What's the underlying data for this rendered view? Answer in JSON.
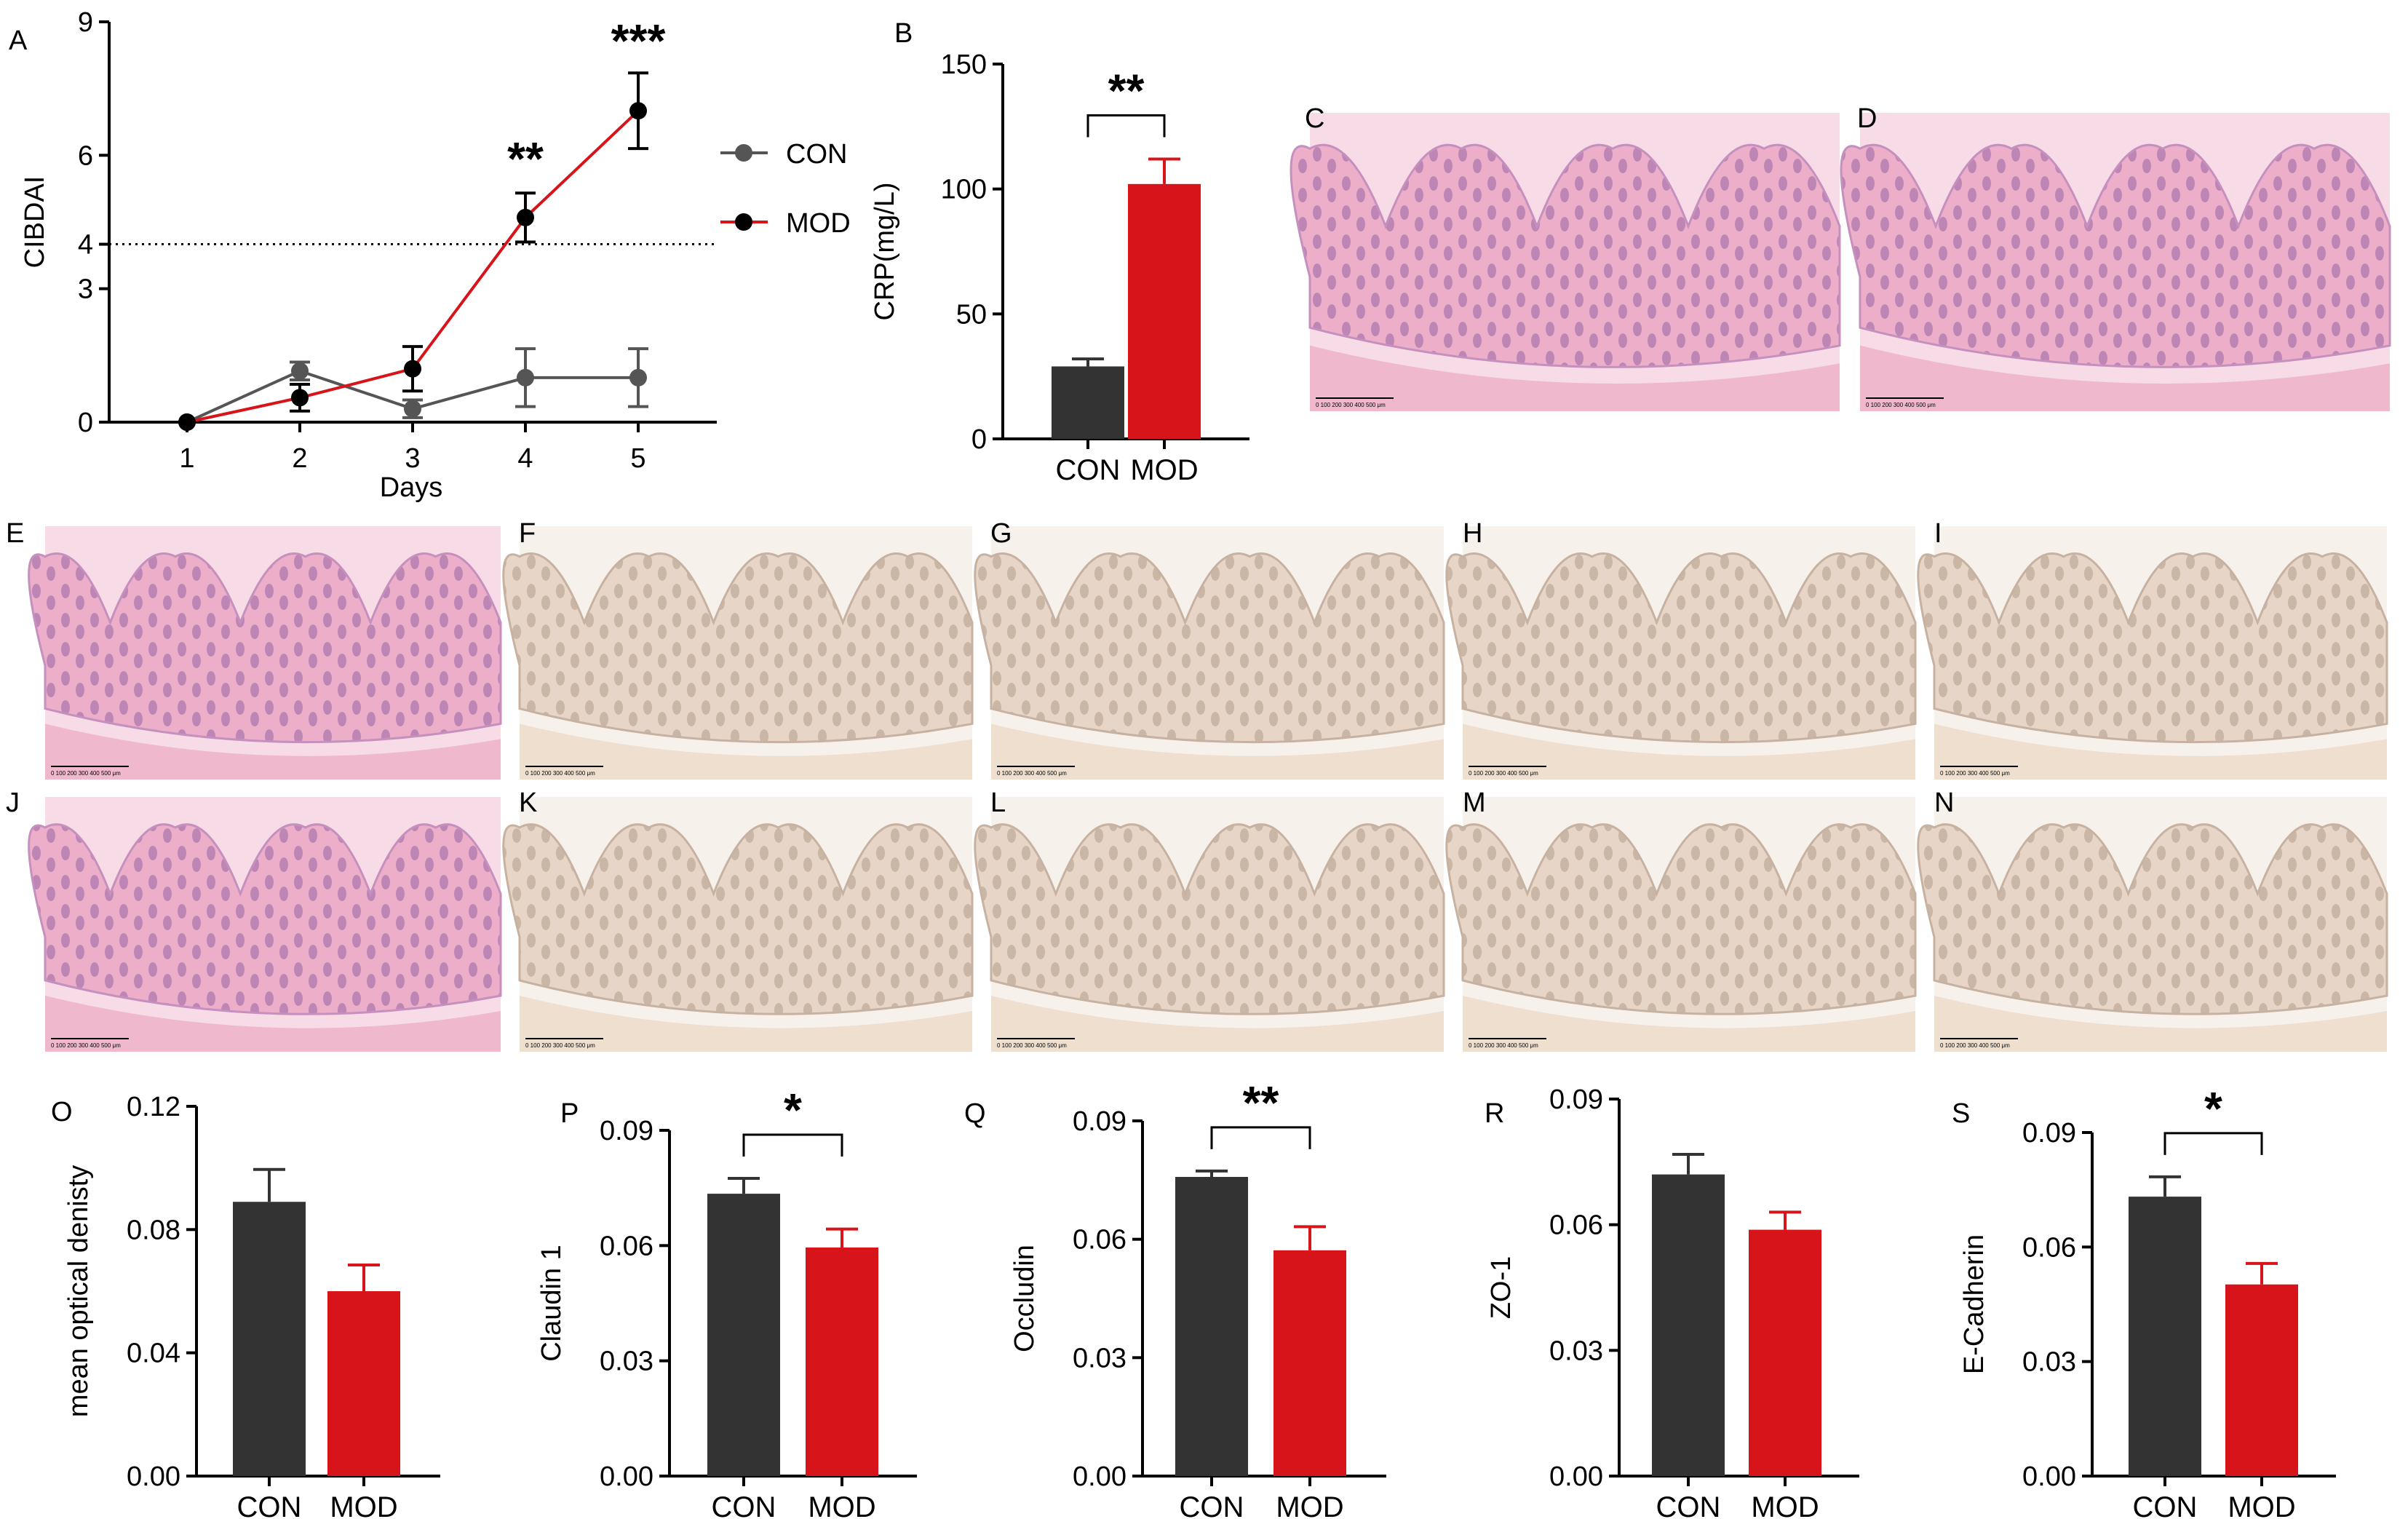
{
  "colors": {
    "con": "#333333",
    "mod": "#d7141a",
    "line_con": "#555555",
    "line_mod": "#d7141a"
  },
  "chart_data": [
    {
      "id": "A",
      "panel": "A",
      "type": "line",
      "xlabel": "Days",
      "ylabel": "CIBDAI",
      "x": [
        1,
        2,
        3,
        4,
        5
      ],
      "yticks": [
        0,
        3,
        4,
        6,
        9
      ],
      "ylim": [
        0,
        9
      ],
      "reference_line": 4,
      "legend_placement": "right",
      "series": [
        {
          "name": "CON",
          "values": [
            0,
            1.15,
            0.3,
            1.0,
            1.0
          ],
          "errors": [
            0,
            0.2,
            0.2,
            0.65,
            0.65
          ]
        },
        {
          "name": "MOD",
          "values": [
            0,
            0.55,
            1.2,
            4.6,
            7.0
          ],
          "errors": [
            0,
            0.3,
            0.5,
            0.55,
            0.85
          ]
        }
      ],
      "annotations": [
        {
          "x": 4,
          "text": "**"
        },
        {
          "x": 5,
          "text": "***"
        }
      ]
    },
    {
      "id": "B",
      "panel": "B",
      "type": "bar",
      "ylabel": "CRP(mg/L)",
      "yticks": [
        0,
        50,
        100,
        150
      ],
      "ylim": [
        0,
        150
      ],
      "categories": [
        "CON",
        "MOD"
      ],
      "values": [
        29,
        102
      ],
      "errors": [
        3,
        10
      ],
      "significance": "**"
    },
    {
      "id": "O",
      "panel": "O",
      "type": "bar",
      "ylabel": "mean optical denisty",
      "yticks": [
        "0.00",
        "0.04",
        "0.08",
        "0.12"
      ],
      "ylim": [
        0,
        0.12
      ],
      "categories": [
        "CON",
        "MOD"
      ],
      "values": [
        0.089,
        0.06
      ],
      "errors": [
        0.0105,
        0.0085
      ],
      "significance": ""
    },
    {
      "id": "P",
      "panel": "P",
      "type": "bar",
      "ylabel": "Claudin 1",
      "yticks": [
        "0.00",
        "0.03",
        "0.06",
        "0.09"
      ],
      "ylim": [
        0,
        0.09
      ],
      "categories": [
        "CON",
        "MOD"
      ],
      "values": [
        0.0735,
        0.0595
      ],
      "errors": [
        0.004,
        0.0048
      ],
      "significance": "*"
    },
    {
      "id": "Q",
      "panel": "Q",
      "type": "bar",
      "ylabel": "Occludin",
      "yticks": [
        "0.00",
        "0.03",
        "0.06",
        "0.09"
      ],
      "ylim": [
        0,
        0.09
      ],
      "categories": [
        "CON",
        "MOD"
      ],
      "values": [
        0.0758,
        0.0572
      ],
      "errors": [
        0.0015,
        0.006
      ],
      "significance": "**"
    },
    {
      "id": "R",
      "panel": "R",
      "type": "bar",
      "ylabel": "ZO-1",
      "yticks": [
        "0.00",
        "0.03",
        "0.06",
        "0.09"
      ],
      "ylim": [
        0,
        0.09
      ],
      "categories": [
        "CON",
        "MOD"
      ],
      "values": [
        0.072,
        0.0588
      ],
      "errors": [
        0.0048,
        0.0042
      ],
      "significance": ""
    },
    {
      "id": "S",
      "panel": "S",
      "type": "bar",
      "ylabel": "E-Cadherin",
      "yticks": [
        "0.00",
        "0.03",
        "0.06",
        "0.09"
      ],
      "ylim": [
        0,
        0.09
      ],
      "categories": [
        "CON",
        "MOD"
      ],
      "values": [
        0.0732,
        0.0502
      ],
      "errors": [
        0.0052,
        0.0055
      ],
      "significance": "*"
    }
  ],
  "histology": [
    {
      "panel": "C",
      "stain": "he",
      "scale": "0  100 200 300 400 500 μm"
    },
    {
      "panel": "D",
      "stain": "he",
      "scale": "0  100 200 300 400 500 μm"
    },
    {
      "panel": "E",
      "stain": "he",
      "scale": "0  100 200 300 400 500 μm"
    },
    {
      "panel": "F",
      "stain": "ihc",
      "scale": "0  100 200 300 400 500 μm"
    },
    {
      "panel": "G",
      "stain": "ihc",
      "scale": "0  100 200 300 400 500 μm"
    },
    {
      "panel": "H",
      "stain": "ihc",
      "scale": "0  100 200 300 400 500 μm"
    },
    {
      "panel": "I",
      "stain": "ihc",
      "scale": "0  100 200 300 400 500 μm"
    },
    {
      "panel": "J",
      "stain": "he",
      "scale": "0  100 200 300 400 500 μm"
    },
    {
      "panel": "K",
      "stain": "ihc",
      "scale": "0  100 200 300 400 500 μm"
    },
    {
      "panel": "L",
      "stain": "ihc",
      "scale": "0  100 200 300 400 500 μm"
    },
    {
      "panel": "M",
      "stain": "ihc",
      "scale": "0  100 200 300 400 500 μm"
    },
    {
      "panel": "N",
      "stain": "ihc",
      "scale": "0  100 200 300 400 500 μm"
    }
  ]
}
